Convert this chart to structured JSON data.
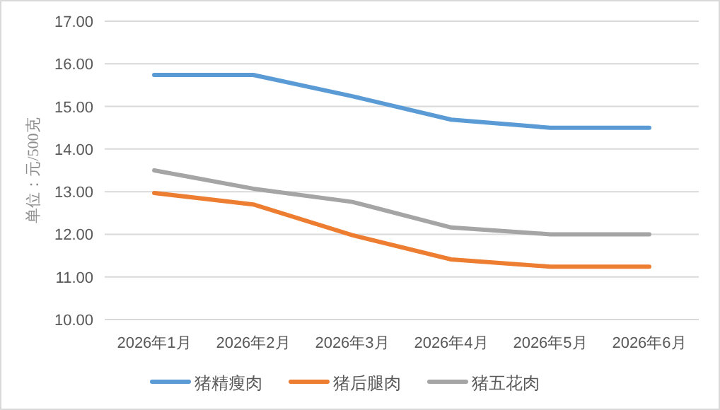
{
  "chart_data": {
    "type": "line",
    "ylabel": "单位：元/500克",
    "categories": [
      "2026年1月",
      "2026年2月",
      "2026年3月",
      "2026年4月",
      "2026年5月",
      "2026年6月"
    ],
    "series": [
      {
        "name": "猪精瘦肉",
        "color": "#5b9bd5",
        "values": [
          15.74,
          15.74,
          15.24,
          14.69,
          14.5,
          14.5
        ]
      },
      {
        "name": "猪后腿肉",
        "color": "#ed7d31",
        "values": [
          12.97,
          12.7,
          11.98,
          11.41,
          11.24,
          11.24
        ]
      },
      {
        "name": "猪五花肉",
        "color": "#a5a5a5",
        "values": [
          13.5,
          13.07,
          12.76,
          12.16,
          12.0,
          12.0
        ]
      }
    ],
    "ylim": [
      10,
      17
    ],
    "yticks": [
      {
        "value": 10,
        "label": "10.00"
      },
      {
        "value": 11,
        "label": "11.00"
      },
      {
        "value": 12,
        "label": "12.00"
      },
      {
        "value": 13,
        "label": "13.00"
      },
      {
        "value": 14,
        "label": "14.00"
      },
      {
        "value": 15,
        "label": "15.00"
      },
      {
        "value": 16,
        "label": "16.00"
      },
      {
        "value": 17,
        "label": "17.00"
      }
    ],
    "grid": "y",
    "legend": "bottom",
    "line_style": "solid"
  }
}
